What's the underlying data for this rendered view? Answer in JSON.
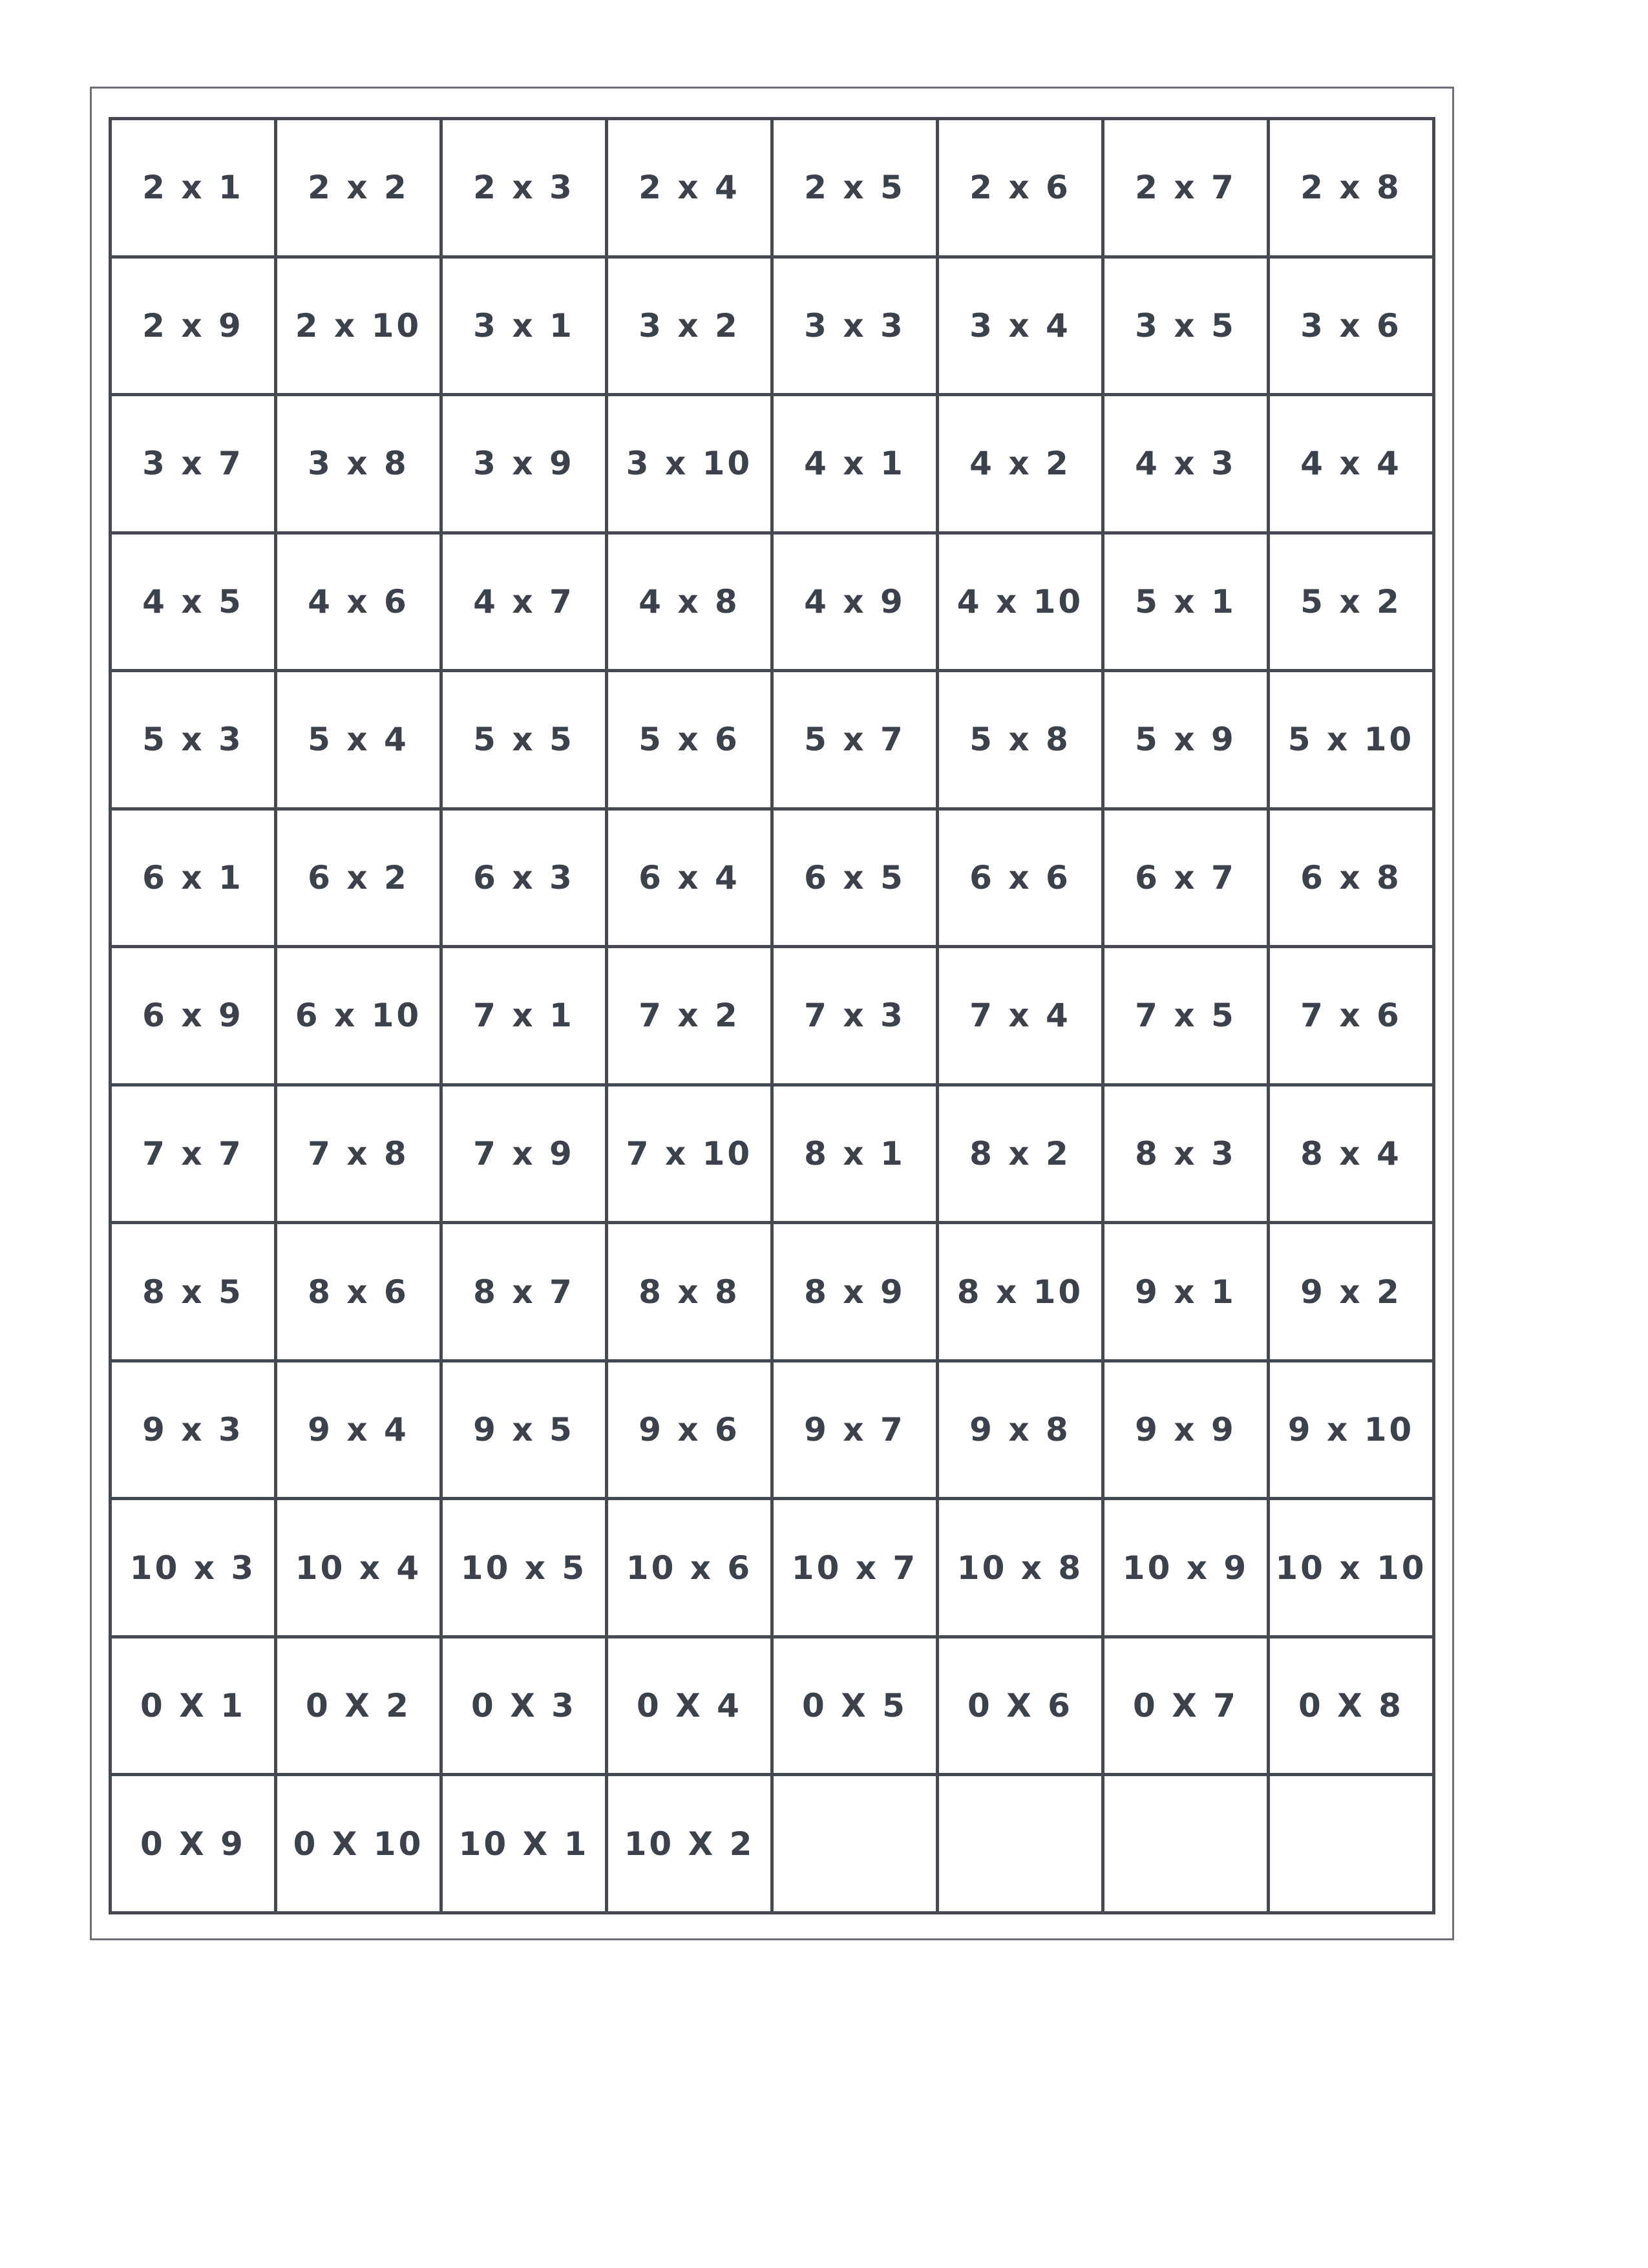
{
  "worksheet": {
    "rows": [
      [
        "2 x 1",
        "2 x 2",
        "2 x 3",
        "2 x 4",
        "2 x 5",
        "2 x 6",
        "2 x 7",
        "2 x 8"
      ],
      [
        "2 x 9",
        "2 x 10",
        "3 x 1",
        "3 x 2",
        "3 x 3",
        "3 x 4",
        "3 x 5",
        "3 x 6"
      ],
      [
        "3 x 7",
        "3 x 8",
        "3 x 9",
        "3 x 10",
        "4 x 1",
        "4 x 2",
        "4 x 3",
        "4 x 4"
      ],
      [
        "4 x 5",
        "4 x 6",
        "4 x 7",
        "4 x 8",
        "4 x 9",
        "4 x 10",
        "5 x 1",
        "5 x 2"
      ],
      [
        "5 x 3",
        "5 x 4",
        "5 x 5",
        "5 x 6",
        "5 x 7",
        "5 x 8",
        "5 x 9",
        "5 x 10"
      ],
      [
        "6 x 1",
        "6 x 2",
        "6 x 3",
        "6 x 4",
        "6 x 5",
        "6 x 6",
        "6 x 7",
        "6 x 8"
      ],
      [
        "6 x 9",
        "6 x 10",
        "7 x 1",
        "7 x 2",
        "7 x 3",
        "7 x 4",
        "7 x 5",
        "7 x 6"
      ],
      [
        "7 x 7",
        "7 x 8",
        "7 x 9",
        "7 x 10",
        "8 x 1",
        "8 x 2",
        "8 x 3",
        "8 x 4"
      ],
      [
        "8 x 5",
        "8 x 6",
        "8 x 7",
        "8 x 8",
        "8 x 9",
        "8 x 10",
        "9 x 1",
        "9 x 2"
      ],
      [
        "9 x 3",
        "9 x 4",
        "9 x 5",
        "9 x 6",
        "9 x 7",
        "9 x 8",
        "9 x 9",
        "9 x 10"
      ],
      [
        "10 x 3",
        "10 x 4",
        "10 x 5",
        "10 x 6",
        "10 x 7",
        "10 x 8",
        "10 x 9",
        "10 x 10"
      ],
      [
        "0 X 1",
        "0 X 2",
        "0 X 3",
        "0 X 4",
        "0 X 5",
        "0 X 6",
        "0 X 7",
        "0 X 8"
      ],
      [
        "0 X 9",
        "0 X 10",
        "10 X 1",
        "10 X 2",
        "",
        "",
        "",
        ""
      ]
    ]
  }
}
